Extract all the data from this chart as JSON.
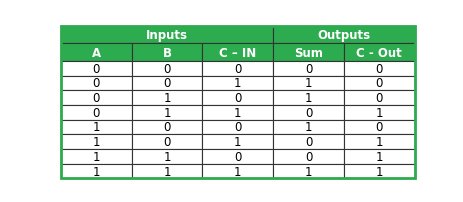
{
  "inputs_label": "Inputs",
  "outputs_label": "Outputs",
  "col_header_labels": [
    "A",
    "B",
    "C – IN",
    "Sum",
    "C - Out"
  ],
  "rows": [
    [
      "0",
      "0",
      "0",
      "0",
      "0"
    ],
    [
      "0",
      "0",
      "1",
      "1",
      "0"
    ],
    [
      "0",
      "1",
      "0",
      "1",
      "0"
    ],
    [
      "0",
      "1",
      "1",
      "0",
      "1"
    ],
    [
      "1",
      "0",
      "0",
      "1",
      "0"
    ],
    [
      "1",
      "0",
      "1",
      "0",
      "1"
    ],
    [
      "1",
      "1",
      "0",
      "0",
      "1"
    ],
    [
      "1",
      "1",
      "1",
      "1",
      "1"
    ]
  ],
  "green_color": "#2dab4f",
  "white_color": "#ffffff",
  "black_color": "#000000",
  "dark_border": "#333333",
  "n_cols": 5,
  "inputs_span": 3,
  "outputs_span": 2,
  "font_size_header": 8.5,
  "font_size_data": 8.5
}
